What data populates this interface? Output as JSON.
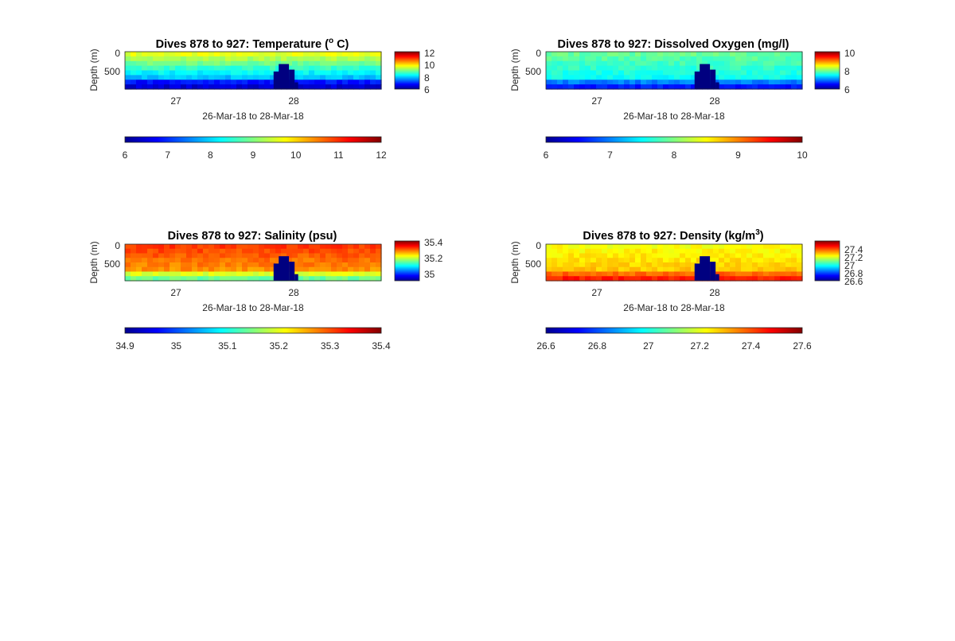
{
  "chart_data": [
    {
      "type": "heatmap",
      "title": "Dives 878 to 927: Temperature (",
      "title_sup": "o",
      "title_end": " C)",
      "ylabel": "Depth (m)",
      "xlabel": "26-Mar-18 to 28-Mar-18",
      "x_ticks": [
        "27",
        "28"
      ],
      "y_ticks": [
        "0",
        "500"
      ],
      "ylim": [
        0,
        1000
      ],
      "colorbar_ticks": [
        "12",
        "10",
        "8",
        "6"
      ],
      "colorbar_range": [
        6,
        12
      ],
      "bottom_colorbar_ticks": [
        "6",
        "7",
        "8",
        "9",
        "10",
        "11",
        "12"
      ],
      "colormap": "jet",
      "surface_value": 9.6,
      "deep_value": 7.2,
      "bottom_value": 6.5,
      "gap_value": 6.0
    },
    {
      "type": "heatmap",
      "title": "Dives 878 to 927: Dissolved Oxygen (mg/l)",
      "ylabel": "Depth (m)",
      "xlabel": "26-Mar-18 to 28-Mar-18",
      "x_ticks": [
        "27",
        "28"
      ],
      "y_ticks": [
        "0",
        "500"
      ],
      "ylim": [
        0,
        1000
      ],
      "colorbar_ticks": [
        "10",
        "8",
        "6"
      ],
      "colorbar_range": [
        6,
        10
      ],
      "bottom_colorbar_ticks": [
        "6",
        "7",
        "8",
        "9",
        "10"
      ],
      "colormap": "jet",
      "surface_value": 7.9,
      "deep_value": 7.4,
      "bottom_value": 6.6,
      "gap_value": 6.0
    },
    {
      "type": "heatmap",
      "title": "Dives 878 to 927: Salinity (psu)",
      "ylabel": "Depth (m)",
      "xlabel": "26-Mar-18 to 28-Mar-18",
      "x_ticks": [
        "27",
        "28"
      ],
      "y_ticks": [
        "0",
        "500"
      ],
      "ylim": [
        0,
        1000
      ],
      "colorbar_ticks": [
        "35.4",
        "35.2",
        "35"
      ],
      "colorbar_range": [
        34.9,
        35.4
      ],
      "bottom_colorbar_ticks": [
        "34.9",
        "35",
        "35.1",
        "35.2",
        "35.3",
        "35.4"
      ],
      "colormap": "jet",
      "surface_value": 35.31,
      "deep_value": 35.25,
      "bottom_value": 35.14,
      "gap_value": 34.9
    },
    {
      "type": "heatmap",
      "title": "Dives 878 to 927: Density (kg/m",
      "title_sup": "3",
      "title_end": ")",
      "ylabel": "Depth (m)",
      "xlabel": "26-Mar-18 to 28-Mar-18",
      "x_ticks": [
        "27",
        "28"
      ],
      "y_ticks": [
        "0",
        "500"
      ],
      "ylim": [
        0,
        1000
      ],
      "colorbar_ticks": [
        "27.4",
        "27.2",
        "27",
        "26.8",
        "26.6"
      ],
      "colorbar_range": [
        26.6,
        27.6
      ],
      "bottom_colorbar_ticks": [
        "26.6",
        "26.8",
        "27",
        "27.2",
        "27.4",
        "27.6"
      ],
      "colormap": "jet",
      "surface_value": 27.22,
      "deep_value": 27.3,
      "bottom_value": 27.45,
      "gap_value": 26.6
    }
  ]
}
